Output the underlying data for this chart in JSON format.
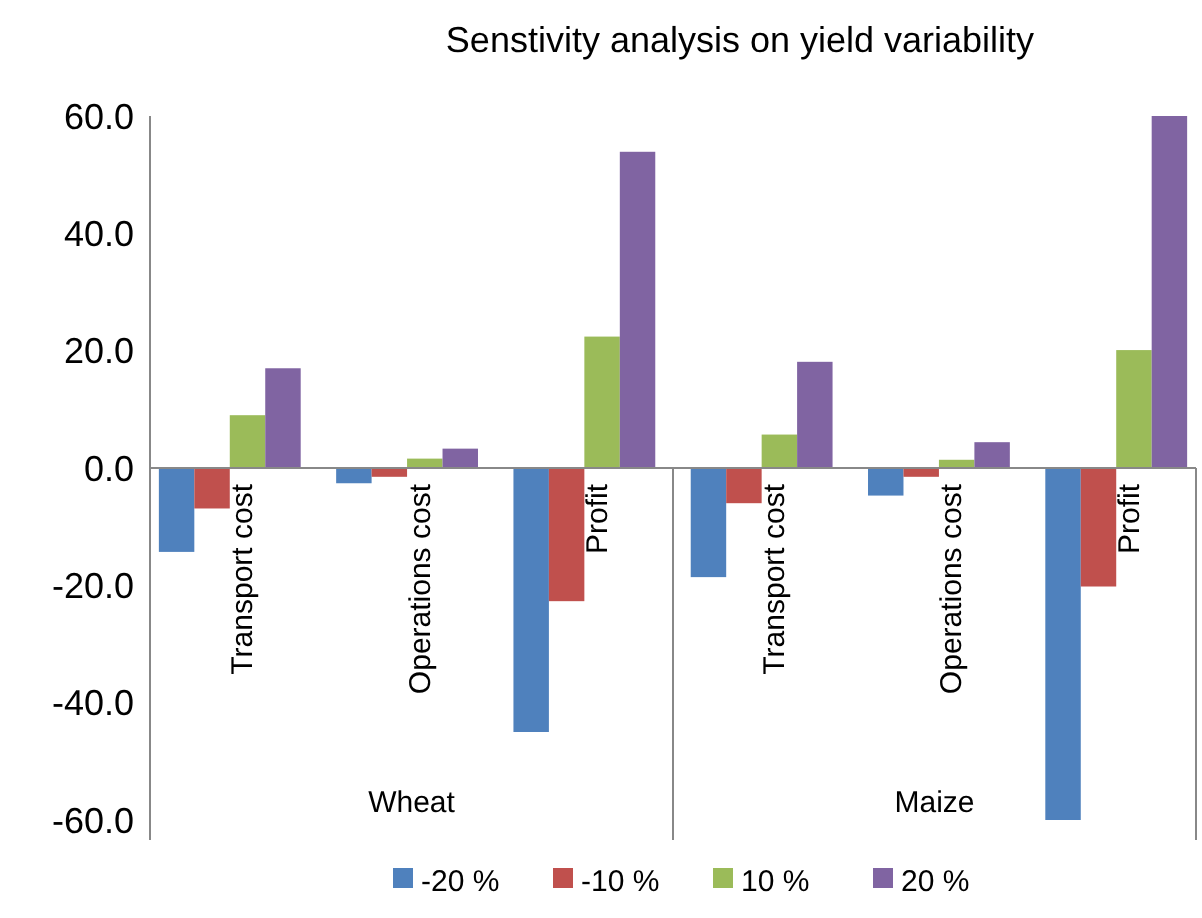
{
  "chart_data": {
    "type": "bar",
    "title": "Senstivity analysis on yield variability",
    "categories": [
      "Transport cost",
      "Operations cost",
      "Profit",
      "Transport cost",
      "Operations cost",
      "Profit"
    ],
    "annotations": [
      "Wheat",
      "Maize"
    ],
    "series": [
      {
        "name": "-20 %",
        "color": "#4f81bd",
        "values": [
          -14.3,
          -2.6,
          -45.0,
          -18.6,
          -4.7,
          -60.0
        ]
      },
      {
        "name": "-10 %",
        "color": "#c0504d",
        "values": [
          -6.9,
          -1.5,
          -22.7,
          -6.0,
          -1.5,
          -20.2
        ]
      },
      {
        "name": "10 %",
        "color": "#9bbb59",
        "values": [
          9.0,
          1.6,
          22.4,
          5.7,
          1.4,
          20.1
        ]
      },
      {
        "name": "20 %",
        "color": "#8064a2",
        "values": [
          17.0,
          3.3,
          53.9,
          18.1,
          4.4,
          60.0
        ]
      }
    ],
    "ylim": [
      -60,
      60
    ],
    "yticks": [
      {
        "value": -60,
        "label": "-60.0"
      },
      {
        "value": -40,
        "label": "-40.0"
      },
      {
        "value": -20,
        "label": "-20.0"
      },
      {
        "value": 0,
        "label": "0.0"
      },
      {
        "value": 20,
        "label": "20.0"
      },
      {
        "value": 40,
        "label": "40.0"
      },
      {
        "value": 60,
        "label": "60.0"
      }
    ],
    "grid": false,
    "legend": "bottom"
  }
}
